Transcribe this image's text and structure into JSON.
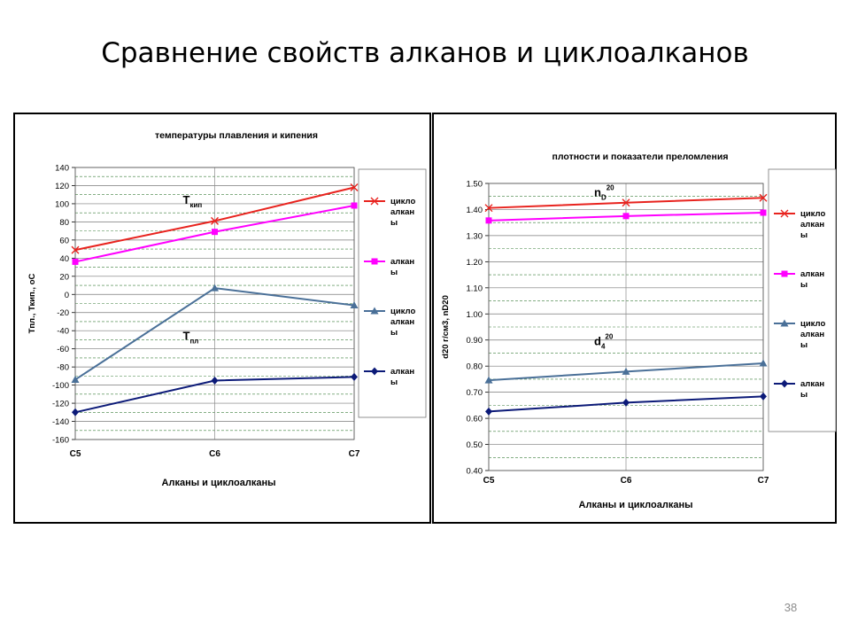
{
  "slide": {
    "title": "Сравнение свойств алканов и циклоалканов",
    "page_number": "38"
  },
  "chart_data": [
    {
      "type": "line",
      "title": "температуры плавления и кипения",
      "xlabel": "Алканы и циклоалканы",
      "ylabel": "Тпл., Ткип., оС",
      "categories": [
        "C5",
        "C6",
        "C7"
      ],
      "ylim": [
        -160,
        140
      ],
      "yticks": [
        -160,
        -140,
        -120,
        -100,
        -80,
        -60,
        -40,
        -20,
        0,
        20,
        40,
        60,
        80,
        100,
        120,
        140
      ],
      "ytick_labels": [
        "-160",
        "-140",
        "-120",
        "-100",
        "-80",
        "-60",
        "-40",
        "-20",
        "0",
        "20",
        "40",
        "60",
        "80",
        "100",
        "120",
        "140"
      ],
      "grid": true,
      "legend_position": "right",
      "series": [
        {
          "name": "цикло алкан ы",
          "legend_lines": [
            "цикло",
            "алкан",
            "ы"
          ],
          "color": "#e8231e",
          "marker": "x",
          "values": [
            49,
            81,
            118
          ]
        },
        {
          "name": "алкан ы",
          "legend_lines": [
            "алкан",
            "ы"
          ],
          "color": "#ff00ff",
          "marker": "square",
          "values": [
            36,
            69,
            98
          ]
        },
        {
          "name": "цикло алкан ы",
          "legend_lines": [
            "цикло",
            "алкан",
            "ы"
          ],
          "color": "#4a7098",
          "marker": "triangle",
          "values": [
            -94,
            7,
            -12
          ]
        },
        {
          "name": "алкан ы",
          "legend_lines": [
            "алкан",
            "ы"
          ],
          "color": "#0c1a78",
          "marker": "diamond",
          "values": [
            -130,
            -95,
            -91
          ]
        }
      ],
      "annotations": [
        {
          "main": "Т",
          "sub": "кип",
          "sup": "",
          "x": "C6",
          "y": 100
        },
        {
          "main": "Т",
          "sub": "пл",
          "sup": "",
          "x": "C6",
          "y": -50
        }
      ]
    },
    {
      "type": "line",
      "title": "плотности и показатели преломления",
      "xlabel": "Алканы и циклоалканы",
      "ylabel": "d20 г/см3, nD20",
      "categories": [
        "C5",
        "C6",
        "C7"
      ],
      "ylim": [
        0.4,
        1.5
      ],
      "yticks": [
        0.4,
        0.5,
        0.6,
        0.7,
        0.8,
        0.9,
        1.0,
        1.1,
        1.2,
        1.3,
        1.4,
        1.5
      ],
      "ytick_labels": [
        "0.40",
        "0.50",
        "0.60",
        "0.70",
        "0.80",
        "0.90",
        "1.00",
        "1.10",
        "1.20",
        "1.30",
        "1.40",
        "1.50"
      ],
      "grid": true,
      "legend_position": "right",
      "series": [
        {
          "name": "цикло алкан ы",
          "legend_lines": [
            "цикло",
            "алкан",
            "ы"
          ],
          "color": "#e8231e",
          "marker": "x",
          "values": [
            1.406,
            1.426,
            1.445
          ]
        },
        {
          "name": "алкан ы",
          "legend_lines": [
            "алкан",
            "ы"
          ],
          "color": "#ff00ff",
          "marker": "square",
          "values": [
            1.358,
            1.375,
            1.388
          ]
        },
        {
          "name": "цикло алкан ы",
          "legend_lines": [
            "цикло",
            "алкан",
            "ы"
          ],
          "color": "#4a7098",
          "marker": "triangle",
          "values": [
            0.746,
            0.779,
            0.811
          ]
        },
        {
          "name": "алкан ы",
          "legend_lines": [
            "алкан",
            "ы"
          ],
          "color": "#0c1a78",
          "marker": "diamond",
          "values": [
            0.626,
            0.66,
            0.684
          ]
        }
      ],
      "annotations": [
        {
          "main": "n",
          "sub": "D",
          "sup": "20",
          "x": "C6",
          "y": 1.45
        },
        {
          "main": "d",
          "sub": "4",
          "sup": "20",
          "x": "C6",
          "y": 0.88
        }
      ]
    }
  ]
}
